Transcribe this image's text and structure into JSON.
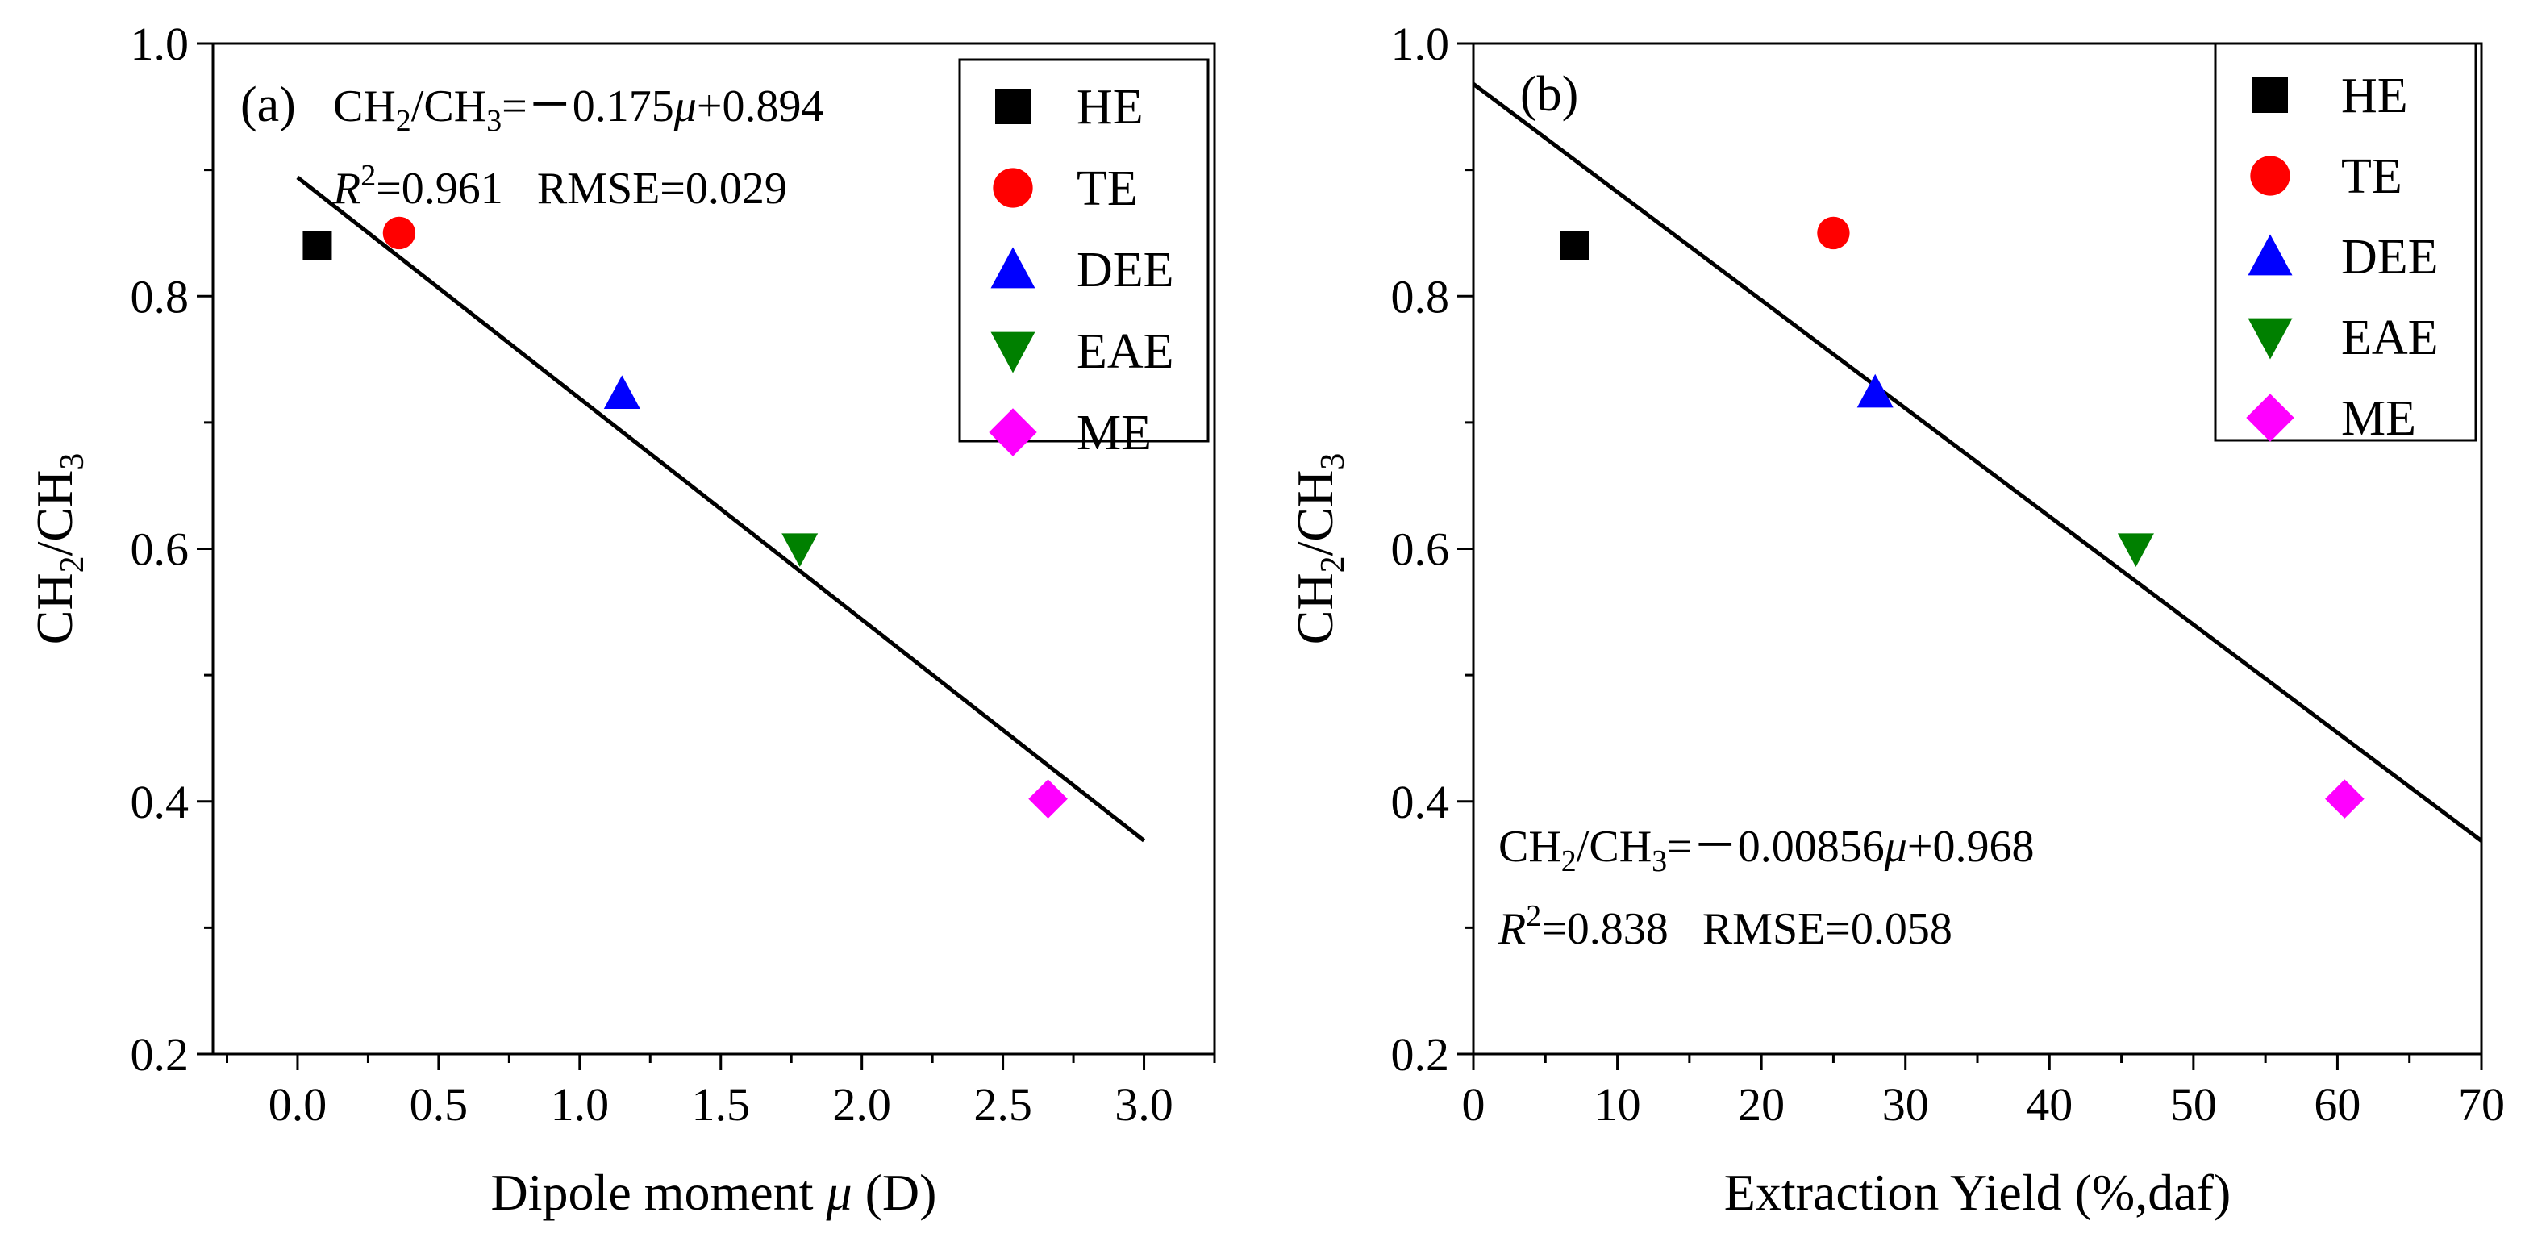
{
  "chart_data": [
    {
      "type": "scatter",
      "panel_label": "(a)",
      "xlabel_text": "Dipole moment ",
      "xlabel_symbol": "μ",
      "xlabel_unit": " (D)",
      "ylabel": "CH2/CH3",
      "xlim": [
        -0.3,
        3.25
      ],
      "ylim": [
        0.2,
        1.0
      ],
      "xticks": [
        0.0,
        0.5,
        1.0,
        1.5,
        2.0,
        2.5,
        3.0
      ],
      "xtick_labels": [
        "0.0",
        "0.5",
        "1.0",
        "1.5",
        "2.0",
        "2.5",
        "3.0"
      ],
      "yticks": [
        0.2,
        0.4,
        0.6,
        0.8,
        1.0
      ],
      "ytick_labels": [
        "0.2",
        "0.4",
        "0.6",
        "0.8",
        "1.0"
      ],
      "series": [
        {
          "name": "HE",
          "marker": "square",
          "color": "#000000",
          "x": 0.07,
          "y": 0.84
        },
        {
          "name": "TE",
          "marker": "circle",
          "color": "#ff0000",
          "x": 0.36,
          "y": 0.85
        },
        {
          "name": "DEE",
          "marker": "triangle-up",
          "color": "#0000ff",
          "x": 1.15,
          "y": 0.723
        },
        {
          "name": "EAE",
          "marker": "triangle-down",
          "color": "#008000",
          "x": 1.78,
          "y": 0.6
        },
        {
          "name": "ME",
          "marker": "diamond",
          "color": "#ff00ff",
          "x": 2.66,
          "y": 0.402
        }
      ],
      "fit": {
        "slope": -0.175,
        "intercept": 0.894,
        "x_range": [
          0.0,
          3.0
        ]
      },
      "equation_text": {
        "lhs": "CH2/CH3=－0.175",
        "var": "μ",
        "rhs": "+0.894"
      },
      "stats_text": {
        "r_symbol": "R",
        "r_exp": "2",
        "r_value": "=0.961",
        "rmse": "RMSE=0.029"
      },
      "equation_position": "top-left",
      "legend_position": "top-right"
    },
    {
      "type": "scatter",
      "panel_label": "(b)",
      "xlabel_text": "Extraction Yield (%,daf)",
      "ylabel": "CH2/CH3",
      "xlim": [
        0,
        70
      ],
      "ylim": [
        0.2,
        1.0
      ],
      "xticks": [
        0,
        10,
        20,
        30,
        40,
        50,
        60,
        70
      ],
      "xtick_labels": [
        "0",
        "10",
        "20",
        "30",
        "40",
        "50",
        "60",
        "70"
      ],
      "yticks": [
        0.2,
        0.4,
        0.6,
        0.8,
        1.0
      ],
      "ytick_labels": [
        "0.2",
        "0.4",
        "0.6",
        "0.8",
        "1.0"
      ],
      "series": [
        {
          "name": "HE",
          "marker": "square",
          "color": "#000000",
          "x": 7.0,
          "y": 0.84
        },
        {
          "name": "TE",
          "marker": "circle",
          "color": "#ff0000",
          "x": 25.0,
          "y": 0.85
        },
        {
          "name": "DEE",
          "marker": "triangle-up",
          "color": "#0000ff",
          "x": 27.9,
          "y": 0.724
        },
        {
          "name": "EAE",
          "marker": "triangle-down",
          "color": "#008000",
          "x": 46.0,
          "y": 0.6
        },
        {
          "name": "ME",
          "marker": "diamond",
          "color": "#ff00ff",
          "x": 60.5,
          "y": 0.402
        }
      ],
      "fit": {
        "slope": -0.00856,
        "intercept": 0.968,
        "x_range": [
          0,
          70
        ]
      },
      "equation_text": {
        "lhs": "CH2/CH3=－0.00856",
        "var": "μ",
        "rhs": "+0.968"
      },
      "stats_text": {
        "r_symbol": "R",
        "r_exp": "2",
        "r_value": "=0.838",
        "rmse": "RMSE=0.058"
      },
      "equation_position": "bottom-left",
      "legend_position": "top-right"
    }
  ]
}
